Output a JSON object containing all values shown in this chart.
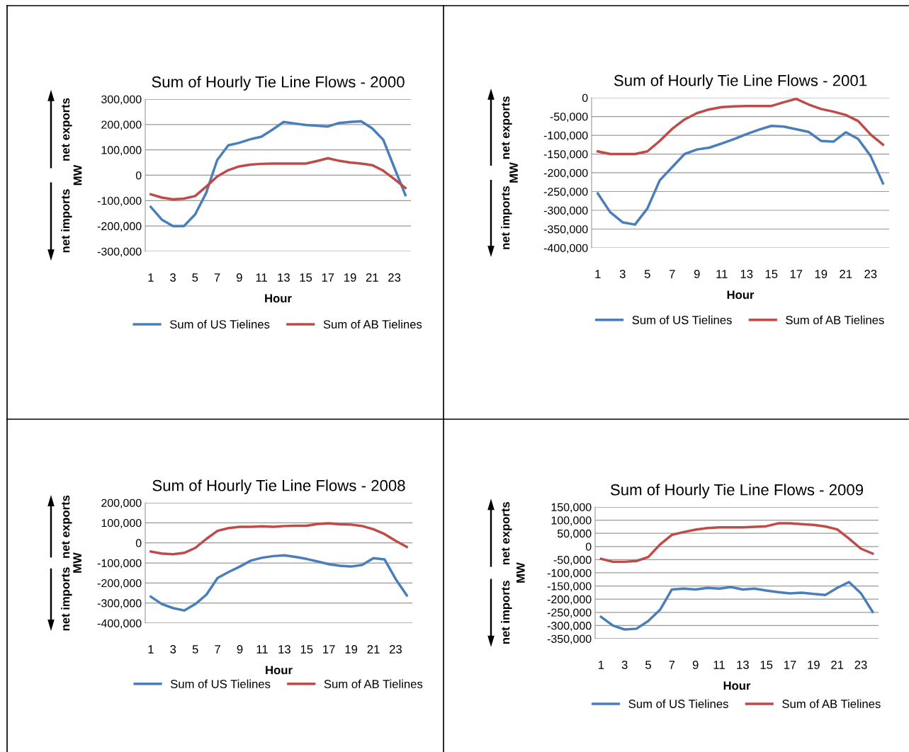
{
  "chart_data": [
    {
      "type": "line",
      "title": "Sum of Hourly Tie Line Flows - 2000",
      "xlabel": "Hour",
      "ylabel": "MW",
      "categories": [
        "1",
        null,
        "3",
        null,
        "5",
        null,
        "7",
        null,
        "9",
        null,
        "11",
        null,
        "13",
        null,
        "15",
        null,
        "17",
        null,
        "19",
        null,
        "21",
        null,
        "23",
        null
      ],
      "series": [
        {
          "name": "Sum of US Tielines",
          "color": "#4a7ebb",
          "values": [
            -125000,
            -175000,
            -200000,
            -200000,
            -155000,
            -70000,
            60000,
            118000,
            128000,
            142000,
            152000,
            180000,
            210000,
            204000,
            198000,
            195000,
            192000,
            206000,
            210000,
            213000,
            185000,
            140000,
            30000,
            -78000
          ]
        },
        {
          "name": "Sum of AB Tielines",
          "color": "#be4b48",
          "values": [
            -75000,
            -88000,
            -95000,
            -92000,
            -82000,
            -45000,
            -5000,
            20000,
            35000,
            42000,
            45000,
            46000,
            46000,
            46000,
            46000,
            56000,
            67000,
            57000,
            50000,
            46000,
            40000,
            18000,
            -15000,
            -50000
          ]
        }
      ],
      "ylim": [
        -300000,
        300000
      ],
      "yticks": [
        {
          "value": -300000,
          "label": "-300,000"
        },
        {
          "value": -200000,
          "label": "-200,000"
        },
        {
          "value": -100000,
          "label": "-100,000"
        },
        0,
        {
          "value": 100000,
          "label": "100,000"
        },
        {
          "value": 200000,
          "label": "200,000"
        },
        {
          "value": 300000,
          "label": "300,000"
        }
      ],
      "grid": "y",
      "legend": "bottom",
      "annotations": [
        "net exports",
        "net imports"
      ]
    },
    {
      "type": "line",
      "title": "Sum of Hourly Tie Line Flows - 2001",
      "xlabel": "Hour",
      "ylabel": "MW",
      "categories": [
        "1",
        null,
        "3",
        null,
        "5",
        null,
        "7",
        null,
        "9",
        null,
        "11",
        null,
        "13",
        null,
        "15",
        null,
        "17",
        null,
        "19",
        null,
        "21",
        null,
        "23",
        null
      ],
      "series": [
        {
          "name": "Sum of US Tielines",
          "color": "#4a7ebb",
          "values": [
            -255000,
            -305000,
            -332000,
            -338000,
            -295000,
            -220000,
            -185000,
            -150000,
            -138000,
            -133000,
            -122000,
            -110000,
            -97000,
            -85000,
            -75000,
            -77000,
            -84000,
            -91000,
            -115000,
            -117000,
            -92000,
            -110000,
            -155000,
            -228000
          ]
        },
        {
          "name": "Sum of AB Tielines",
          "color": "#be4b48",
          "values": [
            -143000,
            -150000,
            -150000,
            -150000,
            -143000,
            -115000,
            -83000,
            -58000,
            -41000,
            -31000,
            -25000,
            -23000,
            -22000,
            -22000,
            -22000,
            -12000,
            -3000,
            -18000,
            -30000,
            -37000,
            -46000,
            -62000,
            -98000,
            -125000
          ]
        }
      ],
      "ylim": [
        -400000,
        0
      ],
      "yticks": [
        {
          "value": -400000,
          "label": "-400,000"
        },
        {
          "value": -350000,
          "label": "-350,000"
        },
        {
          "value": -300000,
          "label": "-300,000"
        },
        {
          "value": -250000,
          "label": "-250,000"
        },
        {
          "value": -200000,
          "label": "-200,000"
        },
        {
          "value": -150000,
          "label": "-150,000"
        },
        {
          "value": -100000,
          "label": "-100,000"
        },
        {
          "value": -50000,
          "label": "-50,000"
        },
        0
      ],
      "grid": "y",
      "legend": "bottom",
      "annotations": [
        "net exports",
        "net imports"
      ]
    },
    {
      "type": "line",
      "title": "Sum of Hourly Tie Line Flows - 2008",
      "xlabel": "Hour",
      "ylabel": "MW",
      "categories": [
        "1",
        null,
        "3",
        null,
        "5",
        null,
        "7",
        null,
        "9",
        null,
        "11",
        null,
        "13",
        null,
        "15",
        null,
        "17",
        null,
        "19",
        null,
        "21",
        null,
        "23",
        null
      ],
      "series": [
        {
          "name": "Sum of US Tielines",
          "color": "#4a7ebb",
          "values": [
            -268000,
            -305000,
            -325000,
            -337000,
            -305000,
            -258000,
            -175000,
            -145000,
            -118000,
            -88000,
            -74000,
            -66000,
            -62000,
            -70000,
            -80000,
            -93000,
            -106000,
            -114000,
            -118000,
            -110000,
            -76000,
            -82000,
            -180000,
            -262000
          ]
        },
        {
          "name": "Sum of AB Tielines",
          "color": "#be4b48",
          "values": [
            -43000,
            -53000,
            -57000,
            -50000,
            -25000,
            20000,
            60000,
            74000,
            80000,
            80000,
            83000,
            80000,
            84000,
            85000,
            85000,
            94000,
            98000,
            92000,
            91000,
            84000,
            68000,
            44000,
            10000,
            -20000
          ]
        }
      ],
      "ylim": [
        -400000,
        200000
      ],
      "yticks": [
        {
          "value": -400000,
          "label": "-400,000"
        },
        {
          "value": -300000,
          "label": "-300,000"
        },
        {
          "value": -200000,
          "label": "-200,000"
        },
        {
          "value": -100000,
          "label": "-100,000"
        },
        0,
        {
          "value": 100000,
          "label": "100,000"
        },
        {
          "value": 200000,
          "label": "200,000"
        }
      ],
      "grid": "y",
      "legend": "bottom",
      "annotations": [
        "net exports",
        "net imports"
      ]
    },
    {
      "type": "line",
      "title": "Sum of Hourly Tie Line Flows - 2009",
      "xlabel": "Hour",
      "ylabel": "MW",
      "categories": [
        "1",
        null,
        "3",
        null,
        "5",
        null,
        "7",
        null,
        "9",
        null,
        "11",
        null,
        "13",
        null,
        "15",
        null,
        "17",
        null,
        "19",
        null,
        "21",
        null,
        "23",
        null
      ],
      "series": [
        {
          "name": "Sum of US Tielines",
          "color": "#4a7ebb",
          "values": [
            -267000,
            -300000,
            -315000,
            -312000,
            -283000,
            -240000,
            -163000,
            -160000,
            -163000,
            -157000,
            -160000,
            -154000,
            -163000,
            -160000,
            -167000,
            -173000,
            -178000,
            -175000,
            -180000,
            -184000,
            -157000,
            -135000,
            -177000,
            -248000
          ]
        },
        {
          "name": "Sum of AB Tielines",
          "color": "#be4b48",
          "values": [
            -47000,
            -58000,
            -58000,
            -55000,
            -40000,
            8000,
            44000,
            55000,
            64000,
            70000,
            73000,
            73000,
            73000,
            75000,
            77000,
            88000,
            88000,
            85000,
            82000,
            76000,
            65000,
            30000,
            -8000,
            -27000
          ]
        }
      ],
      "ylim": [
        -350000,
        150000
      ],
      "yticks": [
        {
          "value": -350000,
          "label": "-350,000"
        },
        {
          "value": -300000,
          "label": "-300,000"
        },
        {
          "value": -250000,
          "label": "-250,000"
        },
        {
          "value": -200000,
          "label": "-200,000"
        },
        {
          "value": -150000,
          "label": "-150,000"
        },
        {
          "value": -100000,
          "label": "-100,000"
        },
        {
          "value": -50000,
          "label": "-50,000"
        },
        0,
        {
          "value": 50000,
          "label": "50,000"
        },
        {
          "value": 100000,
          "label": "100,000"
        },
        {
          "value": 150000,
          "label": "150,000"
        }
      ],
      "grid": "y",
      "legend": "bottom",
      "annotations": [
        "net exports",
        "net imports"
      ]
    }
  ]
}
